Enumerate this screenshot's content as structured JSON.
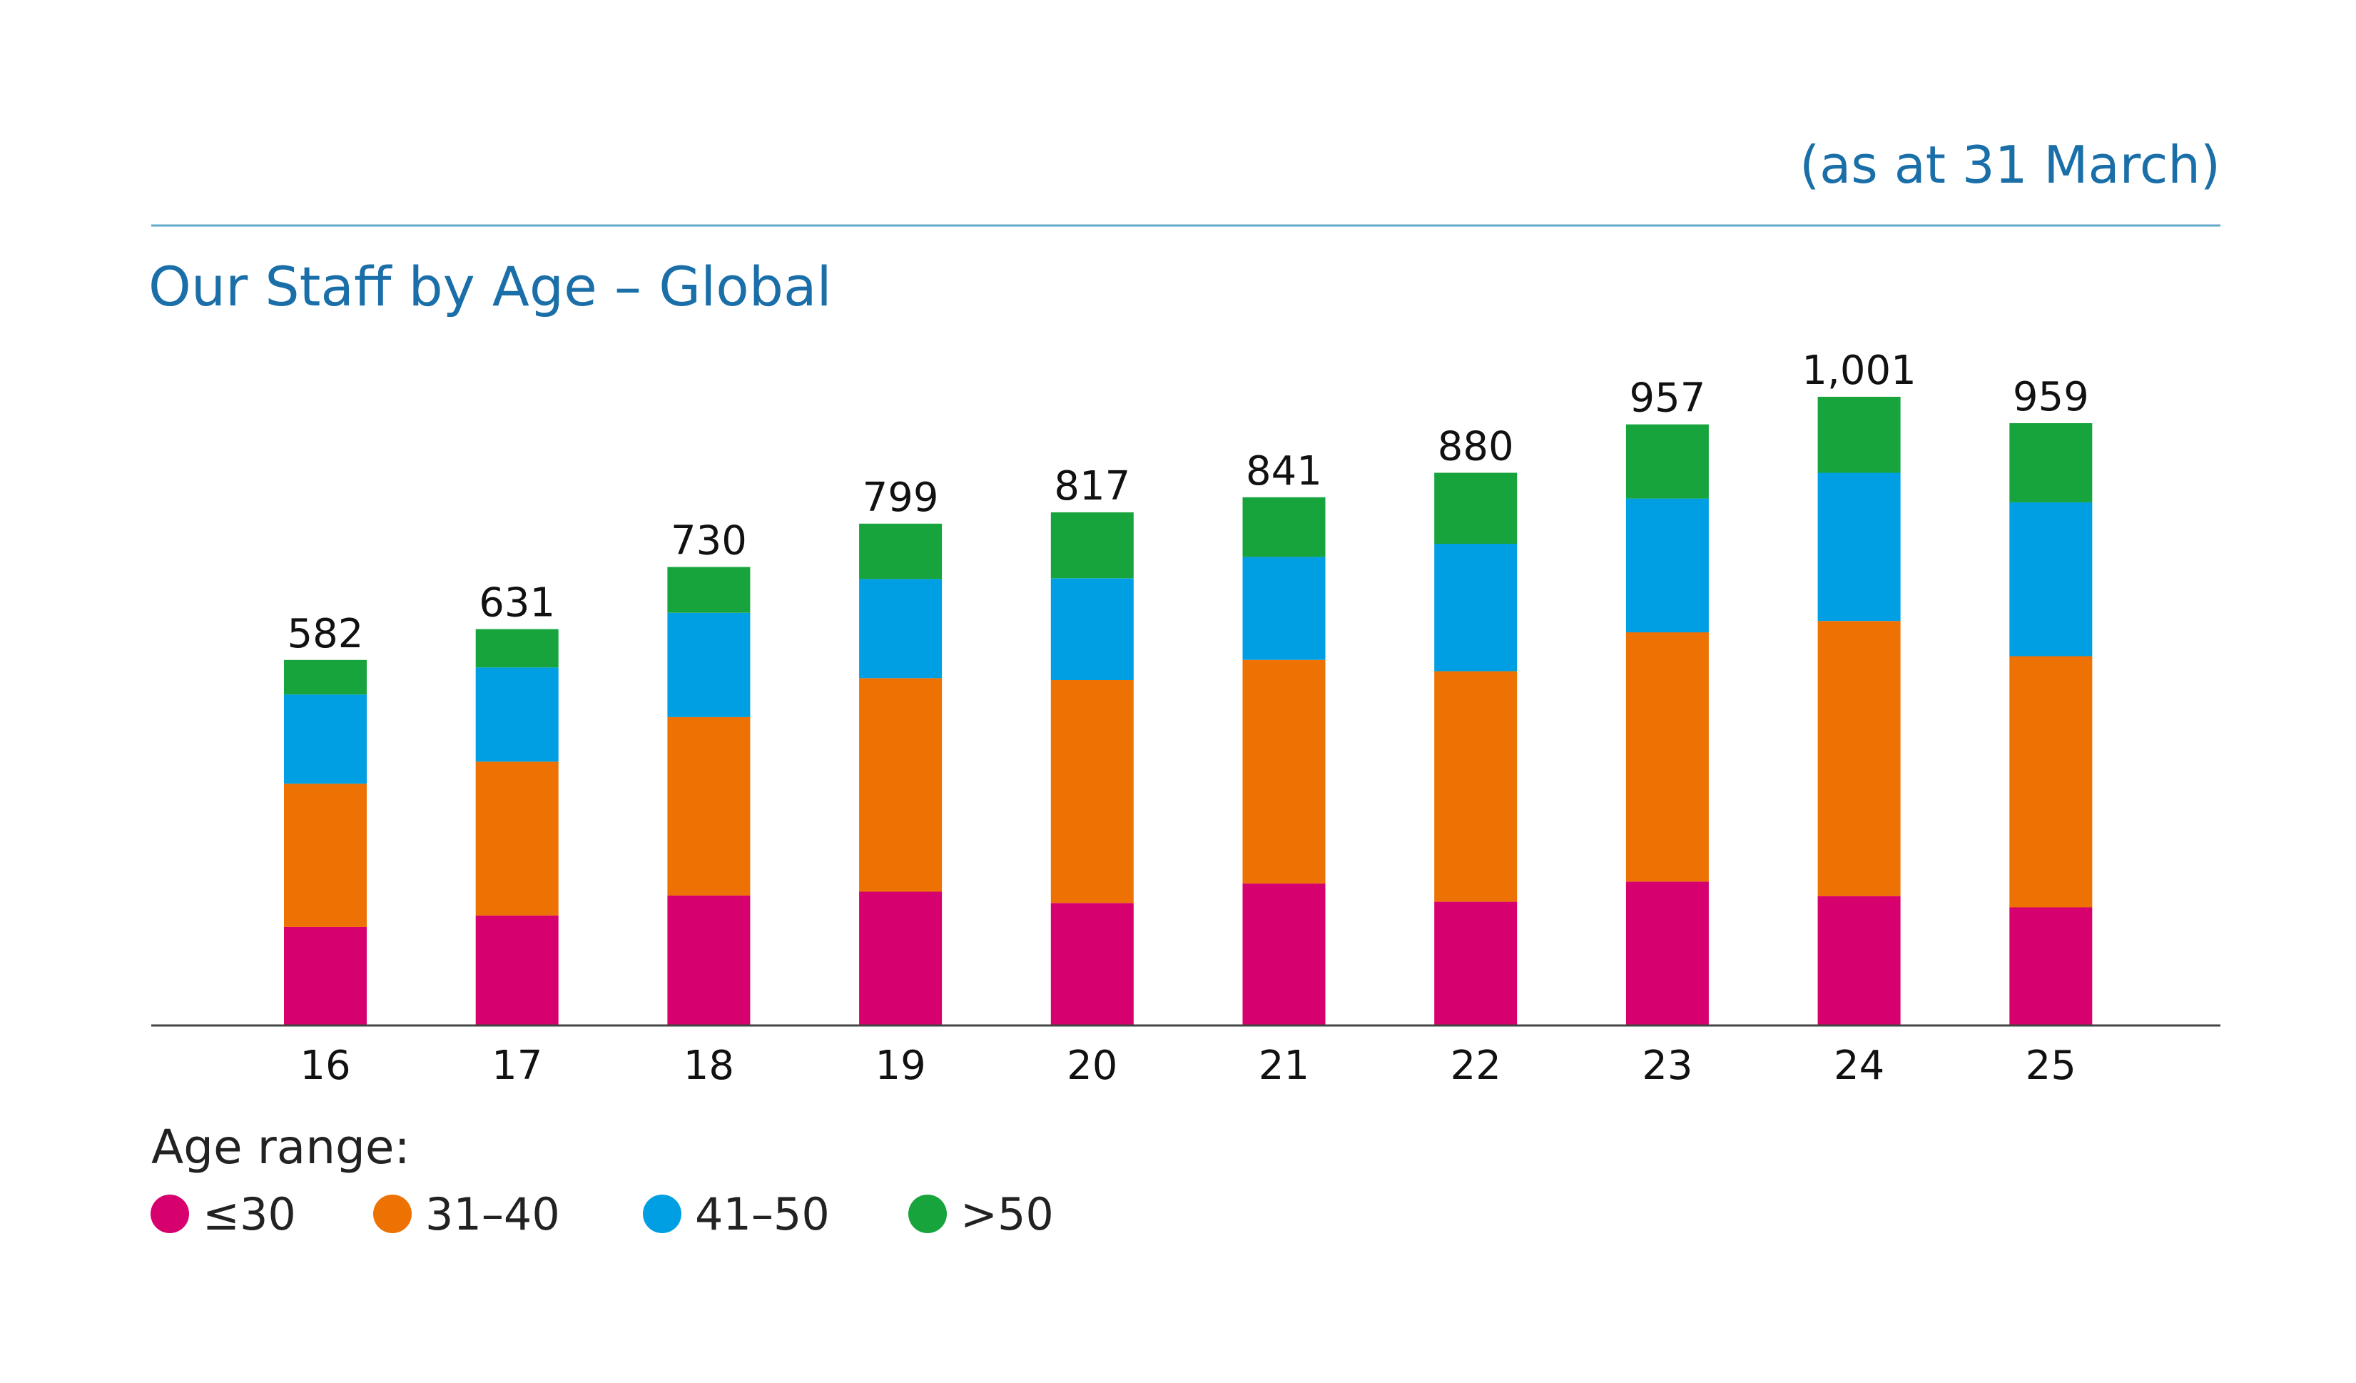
{
  "header": {
    "note": "(as at 31 March)",
    "title": "Our Staff by Age – Global"
  },
  "colors": {
    "accent": "#1a6fa8",
    "rule": "#5fa8c8",
    "axis": "#444444",
    "series": [
      "#d6006f",
      "#ee7203",
      "#009fe3",
      "#17a43c"
    ]
  },
  "chart_data": {
    "type": "bar",
    "stacked": true,
    "title": "Our Staff by Age – Global",
    "subtitle": "(as at 31 March)",
    "xlabel": "",
    "ylabel": "",
    "ylim": [
      0,
      1001
    ],
    "grid": false,
    "legend_position": "bottom-left",
    "legend_title": "Age range:",
    "categories": [
      "16",
      "17",
      "18",
      "19",
      "20",
      "21",
      "22",
      "23",
      "24",
      "25"
    ],
    "totals": [
      582,
      631,
      730,
      799,
      817,
      841,
      880,
      957,
      1001,
      959
    ],
    "total_labels": [
      "582",
      "631",
      "730",
      "799",
      "817",
      "841",
      "880",
      "957",
      "1,001",
      "959"
    ],
    "series": [
      {
        "name": "≤30",
        "values": [
          157,
          175,
          207,
          213,
          195,
          226,
          197,
          229,
          206,
          188
        ]
      },
      {
        "name": "31–40",
        "values": [
          228,
          245,
          284,
          340,
          355,
          356,
          367,
          397,
          438,
          400
        ]
      },
      {
        "name": "41–50",
        "values": [
          142,
          150,
          166,
          158,
          162,
          164,
          203,
          213,
          236,
          245
        ]
      },
      {
        "name": ">50",
        "values": [
          55,
          61,
          73,
          88,
          105,
          95,
          113,
          118,
          121,
          126
        ]
      }
    ]
  }
}
